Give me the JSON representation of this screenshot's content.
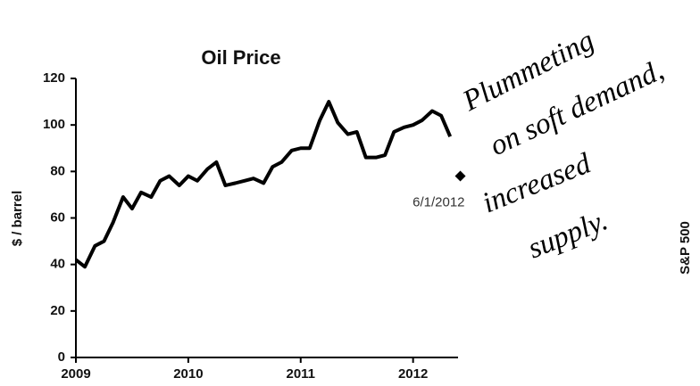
{
  "chart_data": {
    "type": "line",
    "title": "Oil Price",
    "y_label": "$ / barrel",
    "y2_label": "S&P 500",
    "x": [
      2009.0,
      2009.08,
      2009.17,
      2009.25,
      2009.33,
      2009.42,
      2009.5,
      2009.58,
      2009.67,
      2009.75,
      2009.83,
      2009.92,
      2010.0,
      2010.08,
      2010.17,
      2010.25,
      2010.33,
      2010.42,
      2010.5,
      2010.58,
      2010.67,
      2010.75,
      2010.83,
      2010.92,
      2011.0,
      2011.08,
      2011.17,
      2011.25,
      2011.33,
      2011.42,
      2011.5,
      2011.58,
      2011.67,
      2011.75,
      2011.83,
      2011.92,
      2012.0,
      2012.08,
      2012.17,
      2012.25,
      2012.33
    ],
    "series": [
      {
        "color": "#000000",
        "values": [
          42,
          39,
          48,
          50,
          58,
          69,
          64,
          71,
          69,
          76,
          78,
          74,
          78,
          76,
          81,
          84,
          74,
          75,
          76,
          77,
          75,
          82,
          84,
          89,
          90,
          90,
          102,
          110,
          101,
          96,
          97,
          86,
          86,
          87,
          97,
          99,
          100,
          102,
          106,
          104,
          95
        ]
      }
    ],
    "marker": {
      "x": 2012.42,
      "value": 78,
      "label": "6/1/2012",
      "color": "#000000"
    },
    "handwritten_note": [
      "Plummeting",
      "on soft demand,",
      "increased",
      "supply."
    ],
    "xlim": [
      2009,
      2012.4
    ],
    "xticks": [
      2009,
      2010,
      2011,
      2012
    ],
    "ylim": [
      0,
      120
    ],
    "yticks": [
      0,
      20,
      40,
      60,
      80,
      100,
      120
    ]
  }
}
